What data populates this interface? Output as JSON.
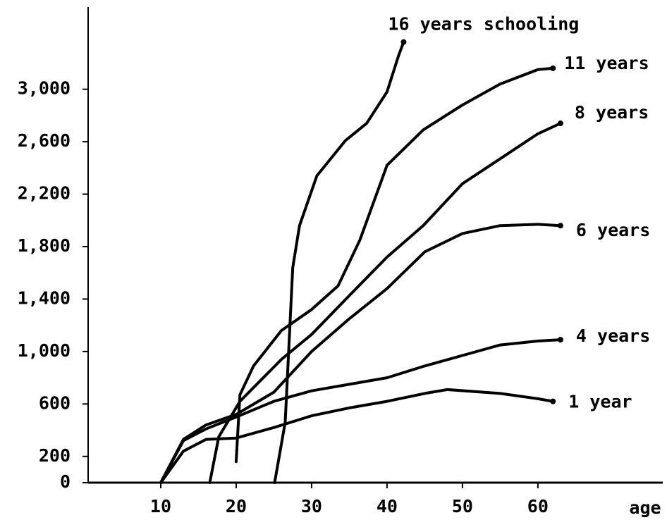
{
  "chart_data": {
    "type": "line",
    "x_label": "age",
    "xlim": [
      0,
      76
    ],
    "xticks": [
      10,
      20,
      30,
      40,
      50,
      60
    ],
    "ylim": [
      0,
      3600
    ],
    "yticks": [
      0,
      200,
      600,
      {
        "value": 1000,
        "label": "1,000"
      },
      {
        "value": 1400,
        "label": "1,400"
      },
      {
        "value": 1800,
        "label": "1,800"
      },
      {
        "value": 2200,
        "label": "2,200"
      },
      {
        "value": 2600,
        "label": "2,600"
      },
      {
        "value": 3000,
        "label": "3,000"
      }
    ],
    "grid": false,
    "series": [
      {
        "name": "16 years schooling",
        "color": "#000000",
        "x": [
          25.1,
          26.5,
          27.5,
          28.4,
          30.7,
          34.5,
          37.3,
          40,
          41.5,
          42.2
        ],
        "values": [
          0,
          460,
          1640,
          1960,
          2340,
          2610,
          2740,
          2980,
          3250,
          3360
        ]
      },
      {
        "name": "11 years",
        "color": "#000000",
        "x": [
          20,
          20.5,
          22.3,
          26,
          30,
          33.5,
          36.4,
          40,
          44.8,
          50,
          55,
          60,
          62
        ],
        "values": [
          160,
          670,
          890,
          1160,
          1320,
          1500,
          1850,
          2420,
          2690,
          2880,
          3040,
          3150,
          3160
        ]
      },
      {
        "name": "8 years",
        "color": "#000000",
        "x": [
          16.5,
          17.7,
          20.5,
          26,
          30,
          35.4,
          40,
          44.8,
          50,
          55,
          60,
          63
        ],
        "values": [
          0,
          350,
          620,
          940,
          1130,
          1450,
          1720,
          1960,
          2280,
          2470,
          2660,
          2740
        ]
      },
      {
        "name": "6 years",
        "color": "#000000",
        "x": [
          10,
          13,
          16,
          20,
          25,
          30,
          35,
          40,
          45,
          50,
          55,
          60,
          63
        ],
        "values": [
          0,
          330,
          440,
          520,
          690,
          1000,
          1250,
          1480,
          1760,
          1900,
          1960,
          1970,
          1960
        ]
      },
      {
        "name": "4 years",
        "color": "#000000",
        "x": [
          10,
          13,
          16,
          20,
          25,
          30,
          35,
          40,
          45,
          50,
          55,
          60,
          63
        ],
        "values": [
          0,
          320,
          410,
          500,
          620,
          700,
          750,
          800,
          890,
          970,
          1050,
          1080,
          1090
        ]
      },
      {
        "name": "1 year",
        "color": "#000000",
        "x": [
          10,
          13,
          16,
          20,
          25,
          30,
          35,
          40,
          45,
          48,
          55,
          60,
          62
        ],
        "values": [
          0,
          240,
          330,
          340,
          420,
          510,
          570,
          620,
          680,
          710,
          680,
          640,
          620
        ]
      }
    ]
  }
}
